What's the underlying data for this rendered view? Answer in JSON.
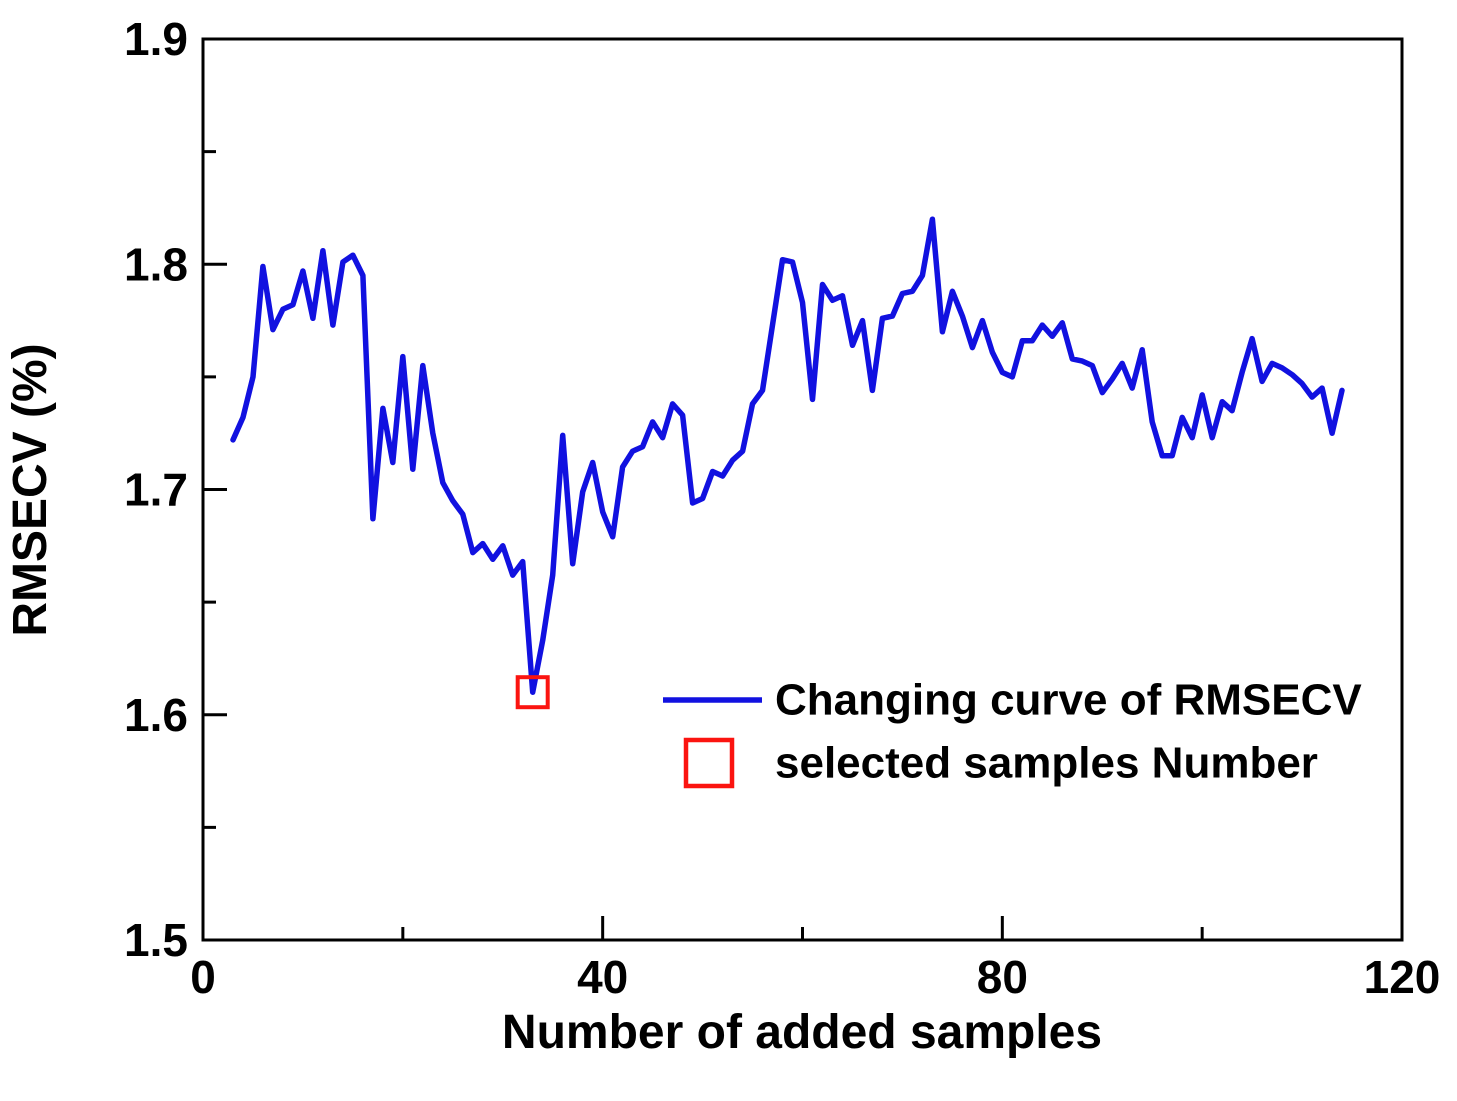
{
  "figure": {
    "background_color": "#ffffff",
    "axis_color": "#000000",
    "line_color": "#1111e0",
    "marker_color": "#fb1410"
  },
  "legend": {
    "items": [
      {
        "label": "Changing curve of RMSECV",
        "symbol": "line",
        "color": "#1111e0"
      },
      {
        "label": "selected samples Number",
        "symbol": "open-square",
        "color": "#fb1410"
      }
    ]
  },
  "chart_data": {
    "type": "line",
    "title": "",
    "xlabel": "Number of added samples",
    "ylabel": "RMSECV (%)",
    "xlim": [
      0,
      120
    ],
    "ylim": [
      1.5,
      1.9
    ],
    "grid": false,
    "legend_position": "inside-center-right",
    "x_major_ticks": [
      0,
      40,
      80,
      120
    ],
    "x_minor_ticks": [
      20,
      60,
      100
    ],
    "y_major_ticks": [
      "1.5",
      "1.6",
      "1.7",
      "1.8",
      "1.9"
    ],
    "y_minor_ticks": [
      1.55,
      1.65,
      1.75,
      1.85
    ],
    "series": [
      {
        "name": "Changing curve of RMSECV",
        "type": "line",
        "color": "#1111e0",
        "points": [
          [
            3,
            1.722
          ],
          [
            4,
            1.732
          ],
          [
            5,
            1.75
          ],
          [
            6,
            1.799
          ],
          [
            7,
            1.771
          ],
          [
            8,
            1.78
          ],
          [
            9,
            1.782
          ],
          [
            10,
            1.797
          ],
          [
            11,
            1.776
          ],
          [
            12,
            1.806
          ],
          [
            13,
            1.773
          ],
          [
            14,
            1.801
          ],
          [
            15,
            1.804
          ],
          [
            16,
            1.795
          ],
          [
            17,
            1.687
          ],
          [
            18,
            1.736
          ],
          [
            19,
            1.712
          ],
          [
            20,
            1.759
          ],
          [
            21,
            1.709
          ],
          [
            22,
            1.755
          ],
          [
            23,
            1.725
          ],
          [
            24,
            1.703
          ],
          [
            25,
            1.695
          ],
          [
            26,
            1.689
          ],
          [
            27,
            1.672
          ],
          [
            28,
            1.676
          ],
          [
            29,
            1.669
          ],
          [
            30,
            1.675
          ],
          [
            31,
            1.662
          ],
          [
            32,
            1.668
          ],
          [
            33,
            1.61
          ],
          [
            34,
            1.633
          ],
          [
            35,
            1.662
          ],
          [
            36,
            1.724
          ],
          [
            37,
            1.667
          ],
          [
            38,
            1.699
          ],
          [
            39,
            1.712
          ],
          [
            40,
            1.69
          ],
          [
            41,
            1.679
          ],
          [
            42,
            1.71
          ],
          [
            43,
            1.717
          ],
          [
            44,
            1.719
          ],
          [
            45,
            1.73
          ],
          [
            46,
            1.723
          ],
          [
            47,
            1.738
          ],
          [
            48,
            1.733
          ],
          [
            49,
            1.694
          ],
          [
            50,
            1.696
          ],
          [
            51,
            1.708
          ],
          [
            52,
            1.706
          ],
          [
            53,
            1.713
          ],
          [
            54,
            1.717
          ],
          [
            55,
            1.738
          ],
          [
            56,
            1.744
          ],
          [
            57,
            1.773
          ],
          [
            58,
            1.802
          ],
          [
            59,
            1.801
          ],
          [
            60,
            1.783
          ],
          [
            61,
            1.74
          ],
          [
            62,
            1.791
          ],
          [
            63,
            1.784
          ],
          [
            64,
            1.786
          ],
          [
            65,
            1.764
          ],
          [
            66,
            1.775
          ],
          [
            67,
            1.744
          ],
          [
            68,
            1.776
          ],
          [
            69,
            1.777
          ],
          [
            70,
            1.787
          ],
          [
            71,
            1.788
          ],
          [
            72,
            1.795
          ],
          [
            73,
            1.82
          ],
          [
            74,
            1.77
          ],
          [
            75,
            1.788
          ],
          [
            76,
            1.777
          ],
          [
            77,
            1.763
          ],
          [
            78,
            1.775
          ],
          [
            79,
            1.761
          ],
          [
            80,
            1.752
          ],
          [
            81,
            1.75
          ],
          [
            82,
            1.766
          ],
          [
            83,
            1.766
          ],
          [
            84,
            1.773
          ],
          [
            85,
            1.768
          ],
          [
            86,
            1.774
          ],
          [
            87,
            1.758
          ],
          [
            88,
            1.757
          ],
          [
            89,
            1.755
          ],
          [
            90,
            1.743
          ],
          [
            91,
            1.749
          ],
          [
            92,
            1.756
          ],
          [
            93,
            1.745
          ],
          [
            94,
            1.762
          ],
          [
            95,
            1.73
          ],
          [
            96,
            1.715
          ],
          [
            97,
            1.715
          ],
          [
            98,
            1.732
          ],
          [
            99,
            1.723
          ],
          [
            100,
            1.742
          ],
          [
            101,
            1.723
          ],
          [
            102,
            1.739
          ],
          [
            103,
            1.735
          ],
          [
            104,
            1.752
          ],
          [
            105,
            1.767
          ],
          [
            106,
            1.748
          ],
          [
            107,
            1.756
          ],
          [
            108,
            1.754
          ],
          [
            109,
            1.751
          ],
          [
            110,
            1.747
          ],
          [
            111,
            1.741
          ],
          [
            112,
            1.745
          ],
          [
            113,
            1.725
          ],
          [
            114,
            1.744
          ]
        ]
      },
      {
        "name": "selected samples Number",
        "type": "scatter",
        "marker": "open-square",
        "color": "#fb1410",
        "points": [
          [
            33,
            1.61
          ]
        ]
      }
    ]
  }
}
